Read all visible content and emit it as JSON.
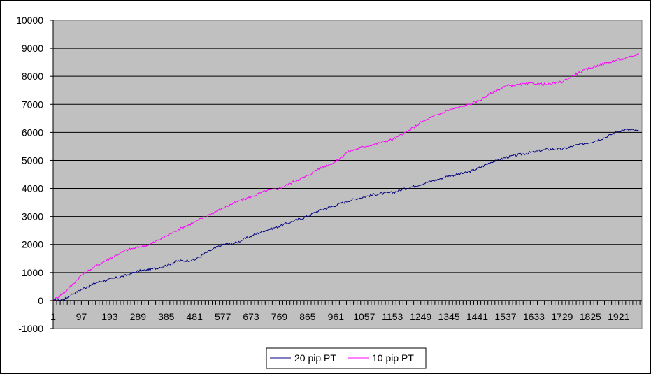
{
  "chart_data": {
    "type": "line",
    "title": "",
    "xlabel": "",
    "ylabel": "",
    "ylim": [
      -1000,
      10000
    ],
    "yticks": [
      -1000,
      0,
      1000,
      2000,
      3000,
      4000,
      5000,
      6000,
      7000,
      8000,
      9000,
      10000
    ],
    "x_tick_labels": [
      "1",
      "97",
      "193",
      "289",
      "385",
      "481",
      "577",
      "673",
      "769",
      "865",
      "961",
      "1057",
      "1153",
      "1249",
      "1345",
      "1441",
      "1537",
      "1633",
      "1729",
      "1825",
      "1921"
    ],
    "x_range": [
      1,
      2000
    ],
    "grid": "horizontal",
    "plot_background": "#c0c0c0",
    "legend_position": "bottom",
    "series": [
      {
        "name": "20 pip PT",
        "color": "#000080",
        "x": [
          1,
          20,
          40,
          60,
          97,
          150,
          193,
          250,
          289,
          330,
          385,
          420,
          481,
          520,
          577,
          620,
          673,
          720,
          769,
          820,
          865,
          900,
          961,
          1000,
          1057,
          1100,
          1153,
          1200,
          1249,
          1300,
          1345,
          1400,
          1441,
          1490,
          1537,
          1580,
          1633,
          1680,
          1729,
          1780,
          1825,
          1870,
          1921,
          1950,
          1990
        ],
        "values": [
          0,
          20,
          50,
          200,
          400,
          650,
          750,
          900,
          1050,
          1100,
          1250,
          1400,
          1450,
          1700,
          2000,
          2050,
          2300,
          2500,
          2650,
          2850,
          3000,
          3200,
          3400,
          3550,
          3700,
          3800,
          3850,
          4000,
          4150,
          4300,
          4450,
          4550,
          4700,
          4950,
          5100,
          5200,
          5300,
          5400,
          5400,
          5550,
          5650,
          5800,
          6050,
          6100,
          6050
        ]
      },
      {
        "name": "10 pip PT",
        "color": "#ff00ff",
        "x": [
          1,
          20,
          40,
          60,
          97,
          150,
          193,
          250,
          289,
          330,
          385,
          420,
          481,
          520,
          577,
          620,
          673,
          720,
          769,
          820,
          865,
          900,
          961,
          1000,
          1057,
          1100,
          1153,
          1200,
          1249,
          1300,
          1345,
          1400,
          1441,
          1490,
          1537,
          1580,
          1633,
          1680,
          1729,
          1780,
          1825,
          1870,
          1921,
          1950,
          1990
        ],
        "values": [
          0,
          150,
          300,
          500,
          900,
          1250,
          1500,
          1800,
          1900,
          2000,
          2300,
          2500,
          2800,
          3000,
          3300,
          3500,
          3700,
          3900,
          4000,
          4250,
          4450,
          4700,
          4950,
          5300,
          5500,
          5600,
          5750,
          6000,
          6350,
          6600,
          6800,
          6950,
          7100,
          7400,
          7650,
          7700,
          7750,
          7700,
          7800,
          8100,
          8300,
          8450,
          8600,
          8650,
          8800
        ]
      }
    ]
  }
}
